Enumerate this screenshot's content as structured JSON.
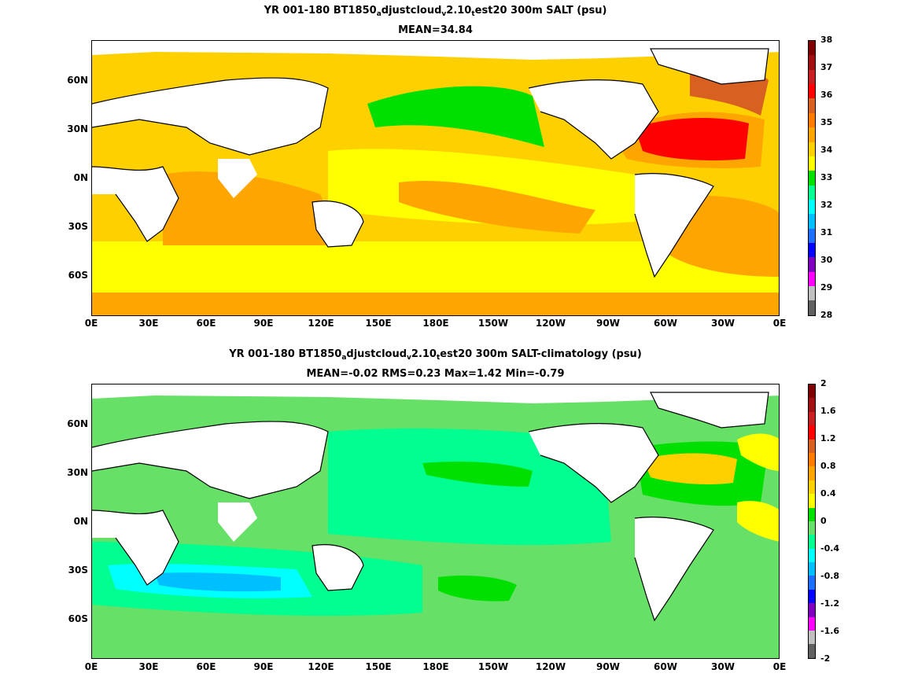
{
  "panels": [
    {
      "title_parts": [
        "YR 001-180 BT1850",
        "a",
        "djustcloud",
        "v",
        "2.10",
        "t",
        "est20 300m SALT (psu)"
      ],
      "subtitle": "MEAN=34.84",
      "y_ticks": [
        "60N",
        "30N",
        "0N",
        "30S",
        "60S"
      ],
      "x_ticks": [
        "0E",
        "30E",
        "60E",
        "90E",
        "120E",
        "150E",
        "180E",
        "150W",
        "120W",
        "90W",
        "60W",
        "30W",
        "0E"
      ],
      "colorbar_labels": [
        "38",
        "37",
        "36",
        "35",
        "34",
        "33",
        "32",
        "31",
        "30",
        "29",
        "28"
      ],
      "colorbar_colors": [
        "#7f0000",
        "#a01010",
        "#c82020",
        "#ff0000",
        "#d86020",
        "#ff7a00",
        "#ffa500",
        "#ffd000",
        "#ffff00",
        "#00e000",
        "#00ff90",
        "#00ffff",
        "#00bfff",
        "#1e6fff",
        "#0000ff",
        "#8000c0",
        "#ff00ff",
        "#c0c0c0",
        "#606060"
      ]
    },
    {
      "title_parts": [
        "YR 001-180 BT1850",
        "a",
        "djustcloud",
        "v",
        "2.10",
        "t",
        "est20 300m SALT-climatology (psu)"
      ],
      "subtitle": "MEAN=-0.02   RMS=0.23   Max=1.42   Min=-0.79",
      "y_ticks": [
        "60N",
        "30N",
        "0N",
        "30S",
        "60S"
      ],
      "x_ticks": [
        "0E",
        "30E",
        "60E",
        "90E",
        "120E",
        "150E",
        "180E",
        "150W",
        "120W",
        "90W",
        "60W",
        "30W",
        "0E"
      ],
      "colorbar_labels": [
        "2",
        "1.6",
        "1.2",
        "0.8",
        "0.4",
        "0",
        "-0.4",
        "-0.8",
        "-1.2",
        "-1.6",
        "-2"
      ],
      "colorbar_colors": [
        "#7f0000",
        "#a01010",
        "#c82020",
        "#ff0000",
        "#d86020",
        "#ff7a00",
        "#ffa500",
        "#ffd000",
        "#ffff00",
        "#00e000",
        "#66e066",
        "#00ff90",
        "#00ffff",
        "#00bfff",
        "#1e6fff",
        "#0000ff",
        "#8000c0",
        "#ff00ff",
        "#c0c0c0",
        "#606060"
      ]
    }
  ]
}
